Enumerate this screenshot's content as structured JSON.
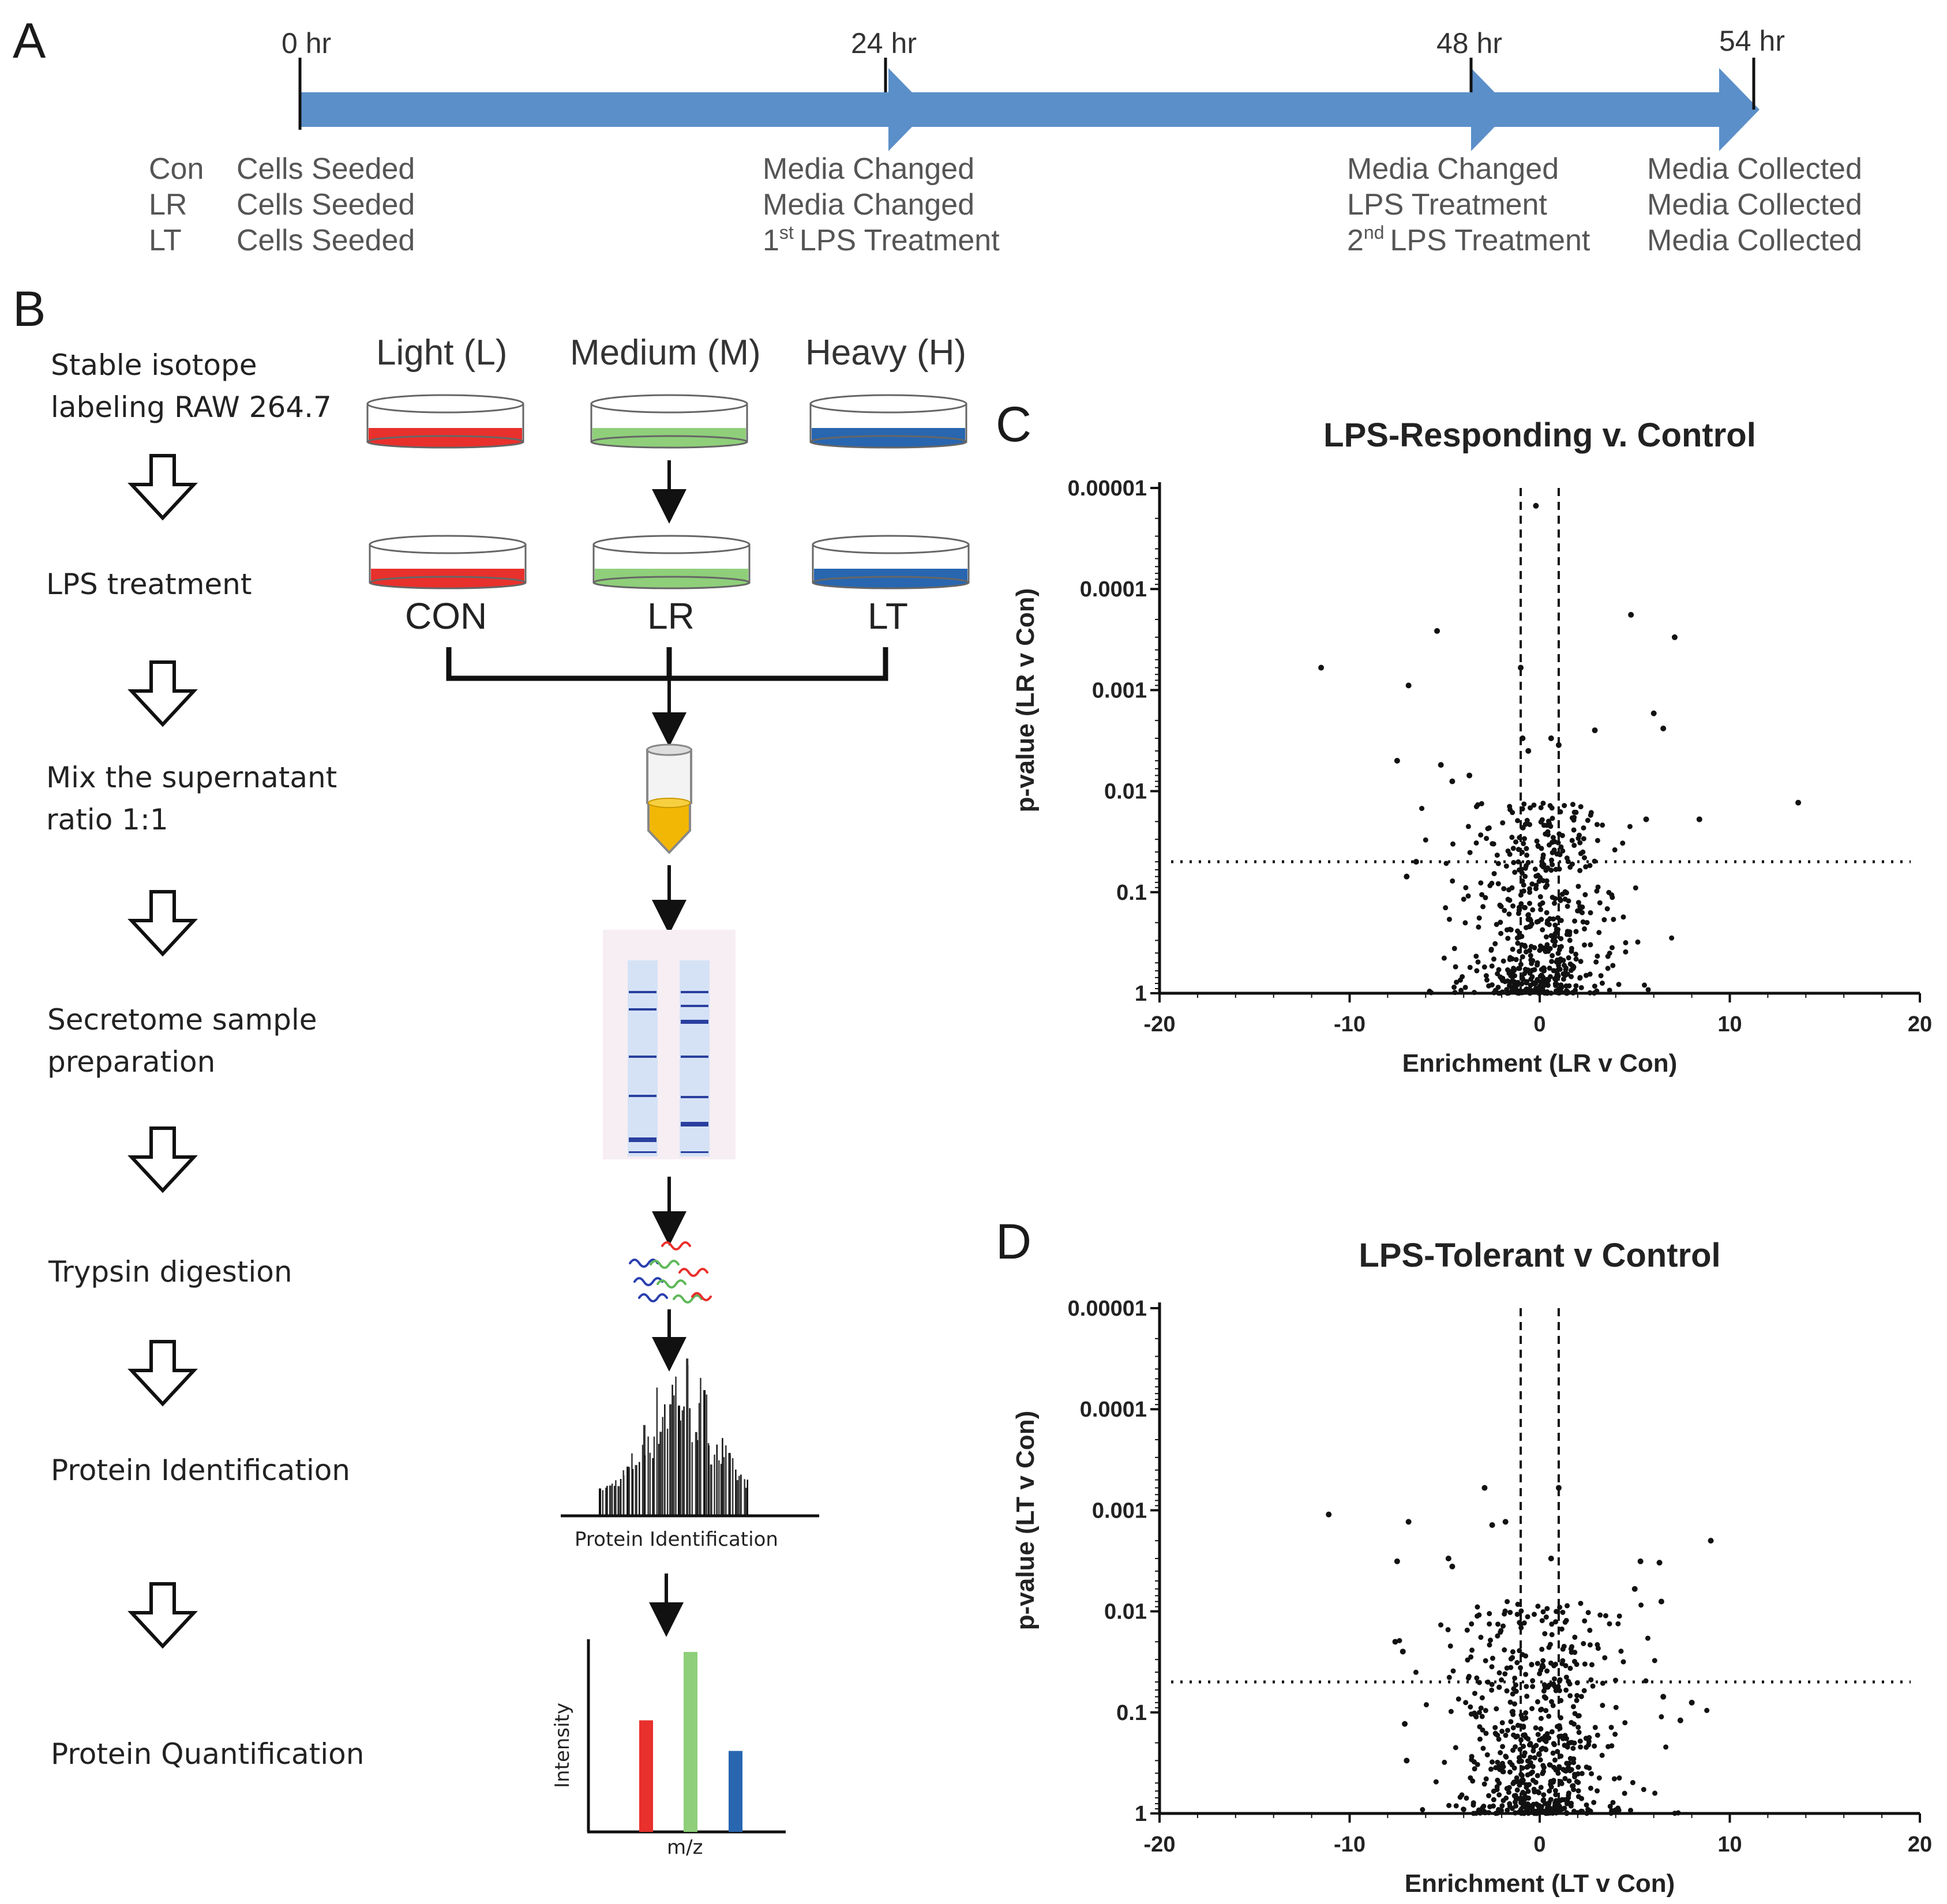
{
  "panels": {
    "a": "A",
    "b": "B",
    "c": "C",
    "d": "D"
  },
  "timeline": {
    "times": [
      "0 hr",
      "24 hr",
      "48 hr",
      "54 hr"
    ],
    "groups": [
      "Con",
      "LR",
      "LT"
    ],
    "col0": [
      "Cells Seeded",
      "Cells Seeded",
      "Cells Seeded"
    ],
    "col1": [
      "Media Changed",
      "Media Changed",
      "LPS Treatment"
    ],
    "col1_sup": "st",
    "col1_prefix": "1",
    "col2": [
      "Media Changed",
      "LPS Treatment",
      "LPS Treatment"
    ],
    "col2_sup": "nd",
    "col2_prefix": "2",
    "col3": [
      "Media Collected",
      "Media Collected",
      "Media Collected"
    ],
    "arrow_color": "#5b8fc9"
  },
  "workflow": {
    "steps": [
      {
        "line1": "Stable isotope",
        "line2": "labeling RAW 264.7"
      },
      {
        "line1": "LPS treatment",
        "line2": ""
      },
      {
        "line1": "Mix the supernatant",
        "line2": "ratio 1:1"
      },
      {
        "line1": "Secretome sample",
        "line2": "preparation"
      },
      {
        "line1": "Trypsin digestion",
        "line2": ""
      },
      {
        "line1": "Protein Identification",
        "line2": ""
      },
      {
        "line1": "Protein Quantification",
        "line2": ""
      }
    ],
    "labels": [
      "Light (L)",
      "Medium (M)",
      "Heavy (H)"
    ],
    "groups": [
      "CON",
      "LR",
      "LT"
    ],
    "colors": {
      "light": "#e8302c",
      "medium": "#8fcf7a",
      "heavy": "#2866b0",
      "tube": "#f2b705"
    },
    "spectrum_caption": "Protein Identification",
    "quant_ylabel": "Intensity",
    "quant_xlabel": "m/z",
    "quant_values": [
      0.62,
      1.0,
      0.45
    ]
  },
  "chart_data": [
    {
      "type": "scatter",
      "title": "LPS-Responding v. Control",
      "xlabel": "Enrichment (LR v Con)",
      "ylabel": "p-value (LR v Con)",
      "xlim": [
        -20,
        20
      ],
      "ylim_log10_p": [
        1,
        1e-05
      ],
      "x_ticks": [
        "-20",
        "-10",
        "0",
        "10",
        "20"
      ],
      "y_ticks": [
        "0.00001",
        "0.0001",
        "0.001",
        "0.01",
        "0.1",
        "1"
      ],
      "vertical_thresholds": [
        -1,
        1
      ],
      "horizontal_threshold_p": 0.05,
      "outliers": [
        [
          -11.5,
          0.0006
        ],
        [
          -6.9,
          0.0009
        ],
        [
          -5.4,
          0.00026
        ],
        [
          -7.5,
          0.005
        ],
        [
          -5.2,
          0.0055
        ],
        [
          -4.6,
          0.008
        ],
        [
          -3.7,
          0.007
        ],
        [
          -0.2,
          1.5e-05
        ],
        [
          -1.0,
          0.0006
        ],
        [
          4.8,
          0.00018
        ],
        [
          7.1,
          0.0003
        ],
        [
          6.0,
          0.0017
        ],
        [
          6.5,
          0.0024
        ],
        [
          2.9,
          0.0025
        ],
        [
          8.4,
          0.019
        ],
        [
          13.6,
          0.013
        ],
        [
          5.6,
          0.019
        ],
        [
          1.0,
          0.0035
        ],
        [
          -0.9,
          0.003
        ],
        [
          0.6,
          0.003
        ],
        [
          -0.6,
          0.004
        ],
        [
          -7.0,
          0.07
        ],
        [
          -6.5,
          0.05
        ]
      ],
      "cloud": {
        "count": 560,
        "x_sigma": 1.3,
        "spread": 5,
        "min_p_log": 1.9
      }
    },
    {
      "type": "scatter",
      "title": "LPS-Tolerant v Control",
      "xlabel": "Enrichment (LT v Con)",
      "ylabel": "p-value (LT v Con)",
      "xlim": [
        -20,
        20
      ],
      "ylim_log10_p": [
        1,
        1e-05
      ],
      "x_ticks": [
        "-20",
        "-10",
        "0",
        "10",
        "20"
      ],
      "y_ticks": [
        "0.00001",
        "0.0001",
        "0.001",
        "0.01",
        "0.1",
        "1"
      ],
      "vertical_thresholds": [
        -1,
        1
      ],
      "horizontal_threshold_p": 0.05,
      "outliers": [
        [
          -11.1,
          0.0011
        ],
        [
          -6.9,
          0.0013
        ],
        [
          -7.5,
          0.0032
        ],
        [
          -4.8,
          0.003
        ],
        [
          -4.6,
          0.0036
        ],
        [
          -2.9,
          0.0006
        ],
        [
          -2.5,
          0.0014
        ],
        [
          -1.8,
          0.0013
        ],
        [
          0.6,
          0.003
        ],
        [
          1.0,
          0.0006
        ],
        [
          9.0,
          0.002
        ],
        [
          5.3,
          0.0032
        ],
        [
          6.3,
          0.0033
        ],
        [
          5.0,
          0.006
        ],
        [
          6.4,
          0.008
        ],
        [
          -7.6,
          0.02
        ],
        [
          -7.2,
          0.025
        ],
        [
          -7.1,
          0.13
        ],
        [
          -7.0,
          0.3
        ],
        [
          6.5,
          0.07
        ],
        [
          8.0,
          0.08
        ],
        [
          7.4,
          0.12
        ]
      ],
      "cloud": {
        "count": 620,
        "x_sigma": 1.6,
        "spread": 5,
        "min_p_log": 2.1
      }
    }
  ]
}
